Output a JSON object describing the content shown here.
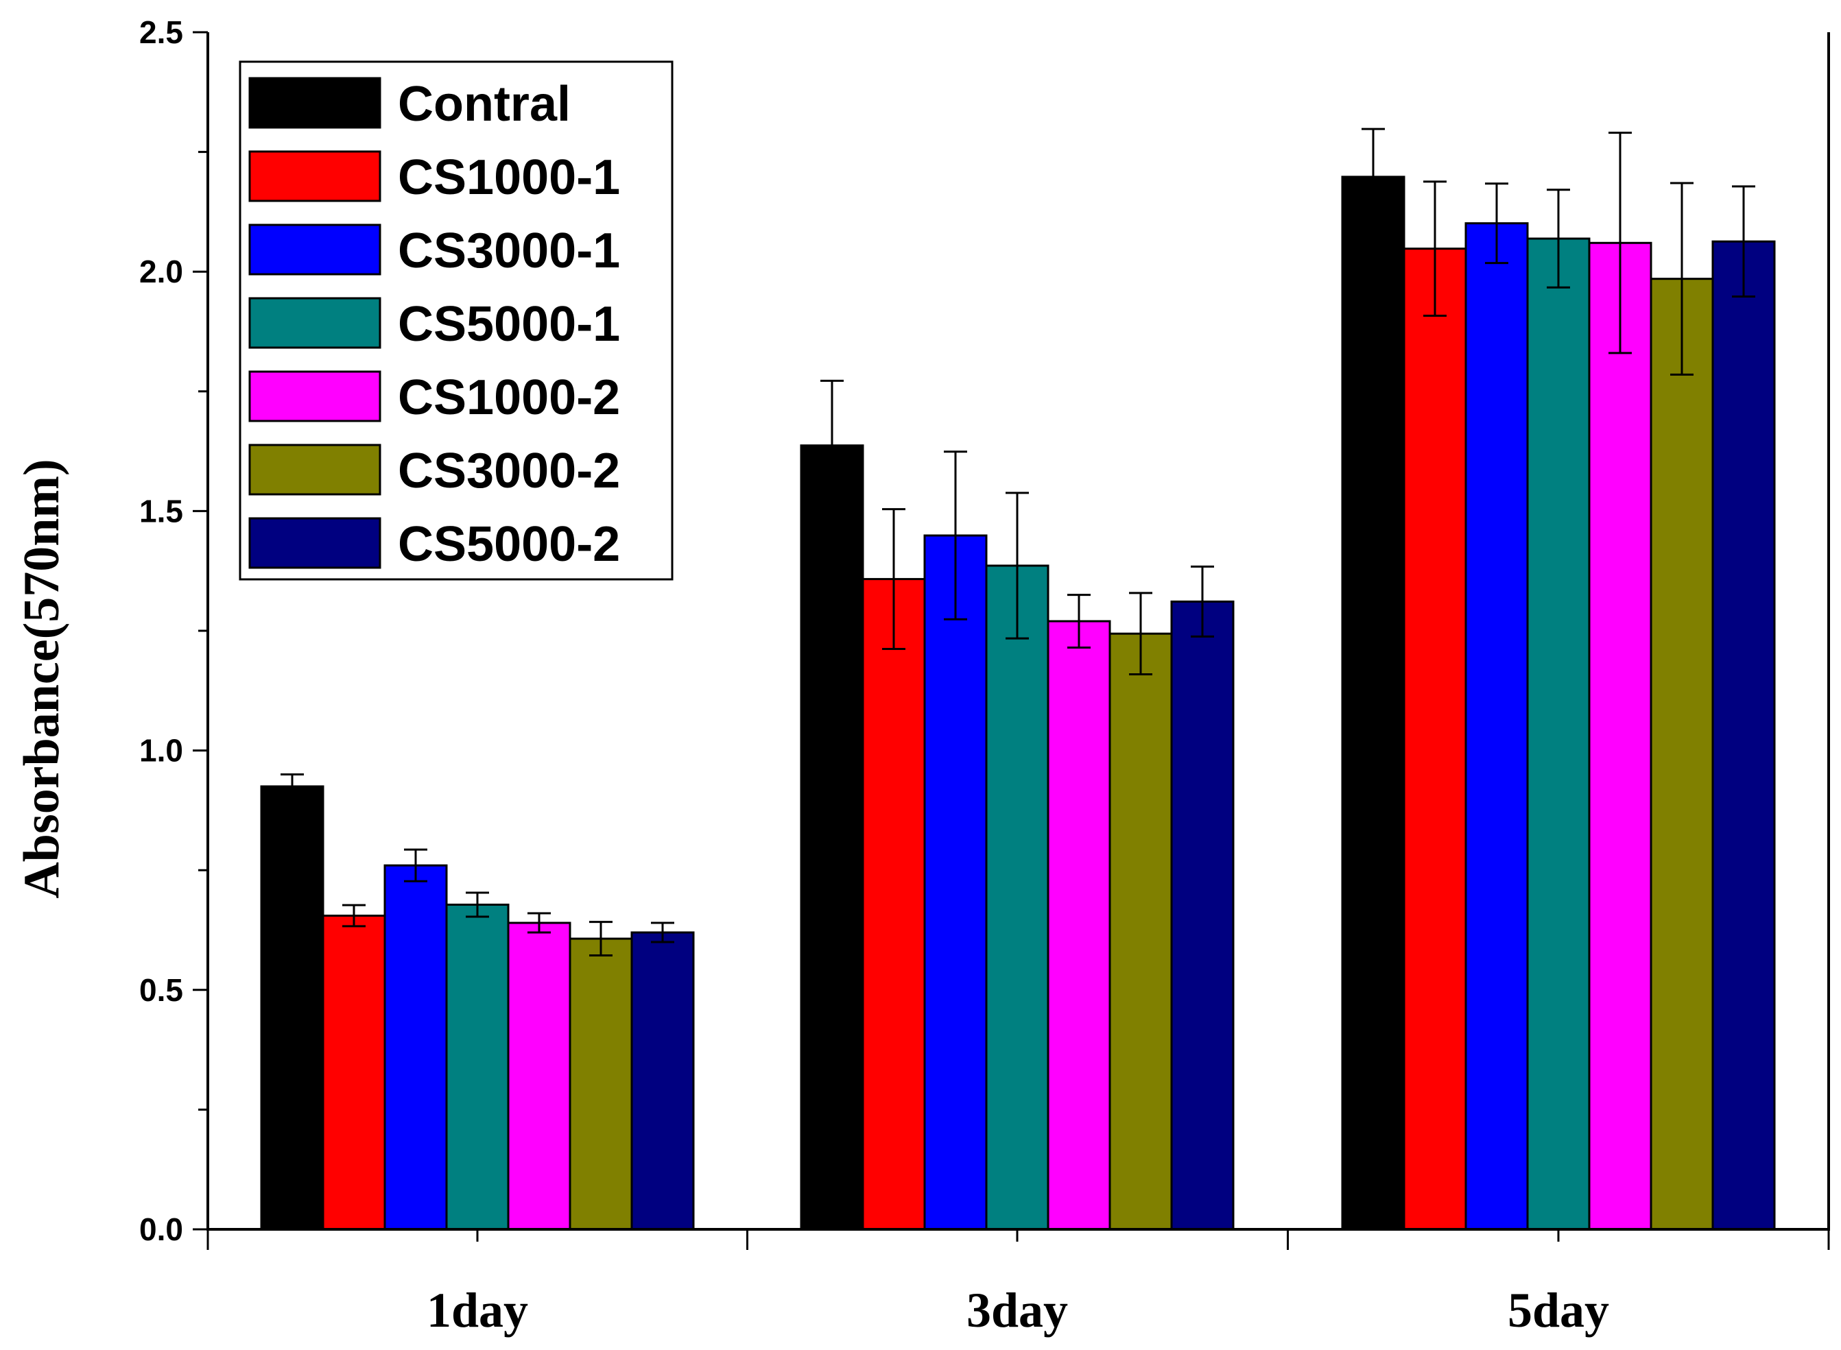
{
  "chart_data": {
    "type": "bar",
    "title": "",
    "xlabel": "",
    "ylabel": "Absorbance(570nm)",
    "ylim": [
      0.0,
      2.5
    ],
    "yticks": [
      "0.0",
      "0.5",
      "1.0",
      "1.5",
      "2.0",
      "2.5"
    ],
    "categories": [
      "1day",
      "3day",
      "5day"
    ],
    "legend_position": "top-left",
    "series": [
      {
        "name": "Contral",
        "color": "#000000",
        "values": [
          0.925,
          1.637,
          2.198
        ],
        "errors": [
          0.025,
          0.135,
          0.1
        ]
      },
      {
        "name": "CS1000-1",
        "color": "#ff0000",
        "values": [
          0.655,
          1.358,
          2.048
        ],
        "errors": [
          0.022,
          0.146,
          0.14
        ]
      },
      {
        "name": "CS3000-1",
        "color": "#0000ff",
        "values": [
          0.76,
          1.449,
          2.101
        ],
        "errors": [
          0.033,
          0.175,
          0.083
        ]
      },
      {
        "name": "CS5000-1",
        "color": "#008080",
        "values": [
          0.678,
          1.386,
          2.069
        ],
        "errors": [
          0.025,
          0.152,
          0.102
        ]
      },
      {
        "name": "CS1000-2",
        "color": "#ff00ff",
        "values": [
          0.64,
          1.27,
          2.06
        ],
        "errors": [
          0.02,
          0.055,
          0.23
        ]
      },
      {
        "name": "CS3000-2",
        "color": "#808000",
        "values": [
          0.607,
          1.244,
          1.985
        ],
        "errors": [
          0.035,
          0.085,
          0.2
        ]
      },
      {
        "name": "CS5000-2",
        "color": "#000080",
        "values": [
          0.62,
          1.311,
          2.063
        ],
        "errors": [
          0.02,
          0.073,
          0.115
        ]
      }
    ]
  }
}
